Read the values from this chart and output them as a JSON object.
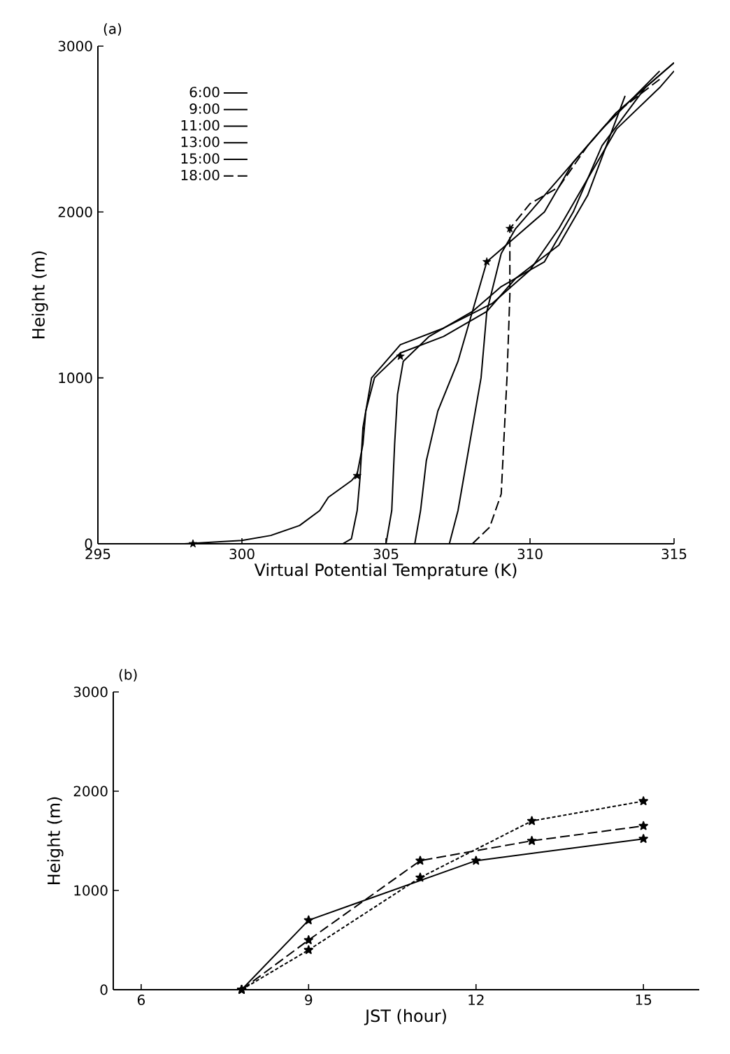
{
  "chart_data": [
    {
      "type": "line",
      "title": "(a)",
      "xlabel": "Virtual Potential Temprature (K)",
      "ylabel": "Height    (m)",
      "xlim": [
        295,
        315
      ],
      "ylim": [
        0,
        3000
      ],
      "xticks": [
        295,
        300,
        305,
        310,
        315
      ],
      "yticks": [
        0,
        1000,
        2000,
        3000
      ],
      "legend": "top left",
      "series": [
        {
          "name": "6:00",
          "color": "#000000",
          "line_style": "solid",
          "x": [
            298,
            300,
            301,
            302,
            302.7,
            303,
            303.8,
            304,
            304.2,
            304.3,
            304.6,
            305.5,
            307,
            308.5,
            309.5,
            311,
            312,
            313.3
          ],
          "values": [
            0,
            20,
            50,
            110,
            200,
            280,
            380,
            420,
            600,
            800,
            1000,
            1150,
            1250,
            1400,
            1600,
            1800,
            2100,
            2700
          ]
        },
        {
          "name": "9:00",
          "color": "#000000",
          "line_style": "solid",
          "x": [
            303.5,
            303.8,
            304,
            304.1,
            304.2,
            304.5,
            305.5,
            307,
            308.7,
            310,
            311,
            312,
            313,
            314.5,
            315
          ],
          "values": [
            0,
            30,
            200,
            400,
            700,
            1000,
            1200,
            1300,
            1450,
            1650,
            1900,
            2200,
            2500,
            2750,
            2850
          ]
        },
        {
          "name": "11:00",
          "color": "#000000",
          "line_style": "solid",
          "x": [
            305,
            305.2,
            305.3,
            305.4,
            305.6,
            306.5,
            308,
            309,
            310.5,
            311.5,
            312.5,
            314,
            315
          ],
          "values": [
            0,
            200,
            600,
            900,
            1100,
            1250,
            1400,
            1550,
            1700,
            2000,
            2400,
            2750,
            2900
          ]
        },
        {
          "name": "13:00",
          "color": "#000000",
          "line_style": "solid",
          "x": [
            306,
            306.2,
            306.4,
            306.8,
            307.5,
            308,
            308.5,
            309.5,
            310.5,
            311.5,
            313,
            315
          ],
          "values": [
            0,
            200,
            500,
            800,
            1100,
            1400,
            1700,
            1850,
            2000,
            2300,
            2600,
            2900
          ]
        },
        {
          "name": "15:00",
          "color": "#000000",
          "line_style": "solid",
          "x": [
            307.2,
            307.5,
            307.8,
            308.1,
            308.3,
            308.5,
            309,
            309.5,
            310,
            311,
            312.5,
            314.5
          ],
          "values": [
            0,
            200,
            500,
            800,
            1000,
            1400,
            1750,
            1900,
            2000,
            2200,
            2500,
            2850
          ]
        },
        {
          "name": "18:00",
          "color": "#000000",
          "line_style": "dashed",
          "x": [
            308,
            308.6,
            309,
            309.2,
            309.3,
            309.3,
            310,
            311,
            312,
            313,
            314.5
          ],
          "values": [
            0,
            100,
            300,
            1000,
            1500,
            1900,
            2050,
            2150,
            2400,
            2600,
            2800
          ]
        },
        {
          "type": "scatter",
          "color": "#000000",
          "marker": "star",
          "x": [
            298.3,
            304,
            305.5,
            308.5,
            309.3
          ],
          "values": [
            0,
            410,
            1130,
            1700,
            1900
          ]
        }
      ]
    },
    {
      "type": "line",
      "title": "(b)",
      "xlabel": "JST (hour)",
      "ylabel": "Height (m)",
      "xlim": [
        5.5,
        16
      ],
      "ylim": [
        0,
        3000
      ],
      "xticks": [
        6,
        9,
        12,
        15
      ],
      "yticks": [
        0,
        1000,
        2000,
        3000
      ],
      "marker": "star",
      "series": [
        {
          "color": "#000000",
          "line_style": "solid",
          "x": [
            7.8,
            9,
            12,
            15
          ],
          "values": [
            0,
            700,
            1300,
            1520
          ]
        },
        {
          "color": "#000000",
          "line_style": "dashed",
          "x": [
            7.8,
            9,
            11,
            13,
            15
          ],
          "values": [
            0,
            500,
            1300,
            1500,
            1650
          ]
        },
        {
          "color": "#000000",
          "line_style": "dotted",
          "x": [
            7.8,
            9,
            11,
            13,
            15
          ],
          "values": [
            0,
            400,
            1130,
            1700,
            1900
          ]
        }
      ]
    }
  ]
}
